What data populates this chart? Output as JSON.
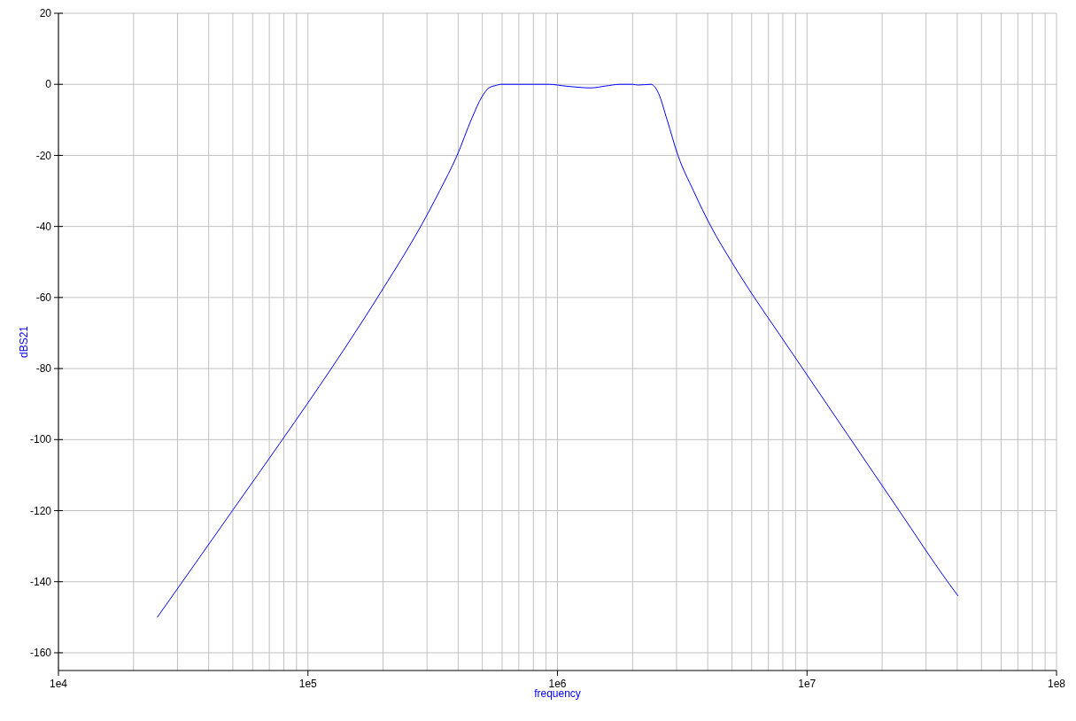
{
  "chart_data": {
    "type": "line",
    "xlabel": "frequency",
    "ylabel": "dBS21",
    "log": "x",
    "color": "#0000ff",
    "x": [
      24900,
      31400,
      49800,
      79000,
      124000,
      190000,
      202000,
      238000,
      283000,
      337000,
      396000,
      454000,
      498000,
      531000,
      568000,
      592000,
      927000,
      1080000,
      1360000,
      1550000,
      1780000,
      2000000,
      2100000,
      2370000,
      2440000,
      2540000,
      2750000,
      3040000,
      3510000,
      4120000,
      4990000,
      6150000,
      7690000,
      9610000,
      15000000,
      23400000,
      36600000,
      40300000
    ],
    "values": [
      -150,
      -140,
      -120,
      -100,
      -80,
      -60,
      -57,
      -49,
      -40,
      -30,
      -20,
      -9.5,
      -3.5,
      -1,
      -0.3,
      0,
      0,
      -0.5,
      -1,
      -0.5,
      0,
      0,
      -0.2,
      0,
      -0.5,
      -2.5,
      -10,
      -20,
      -30,
      -40,
      -50,
      -60,
      -70,
      -80,
      -100,
      -120,
      -140,
      -144
    ],
    "xlim": [
      10000,
      100000000
    ],
    "xticks": [
      {
        "value": 10000,
        "label": "1e4"
      },
      {
        "value": 20000,
        "label": null
      },
      {
        "value": 30000,
        "label": null
      },
      {
        "value": 40000,
        "label": null
      },
      {
        "value": 50000,
        "label": null
      },
      {
        "value": 60000,
        "label": null
      },
      {
        "value": 70000,
        "label": null
      },
      {
        "value": 80000,
        "label": null
      },
      {
        "value": 90000,
        "label": null
      },
      {
        "value": 100000,
        "label": "1e5"
      },
      {
        "value": 200000,
        "label": null
      },
      {
        "value": 300000,
        "label": null
      },
      {
        "value": 400000,
        "label": null
      },
      {
        "value": 500000,
        "label": null
      },
      {
        "value": 600000,
        "label": null
      },
      {
        "value": 700000,
        "label": null
      },
      {
        "value": 800000,
        "label": null
      },
      {
        "value": 900000,
        "label": null
      },
      {
        "value": 1000000,
        "label": "1e6"
      },
      {
        "value": 2000000,
        "label": null
      },
      {
        "value": 3000000,
        "label": null
      },
      {
        "value": 4000000,
        "label": null
      },
      {
        "value": 5000000,
        "label": null
      },
      {
        "value": 6000000,
        "label": null
      },
      {
        "value": 7000000,
        "label": null
      },
      {
        "value": 8000000,
        "label": null
      },
      {
        "value": 9000000,
        "label": null
      },
      {
        "value": 10000000,
        "label": "1e7"
      },
      {
        "value": 20000000,
        "label": null
      },
      {
        "value": 30000000,
        "label": null
      },
      {
        "value": 40000000,
        "label": null
      },
      {
        "value": 50000000,
        "label": null
      },
      {
        "value": 60000000,
        "label": null
      },
      {
        "value": 70000000,
        "label": null
      },
      {
        "value": 80000000,
        "label": null
      },
      {
        "value": 90000000,
        "label": null
      },
      {
        "value": 100000000,
        "label": "1e8"
      }
    ],
    "ylim": [
      -165,
      20
    ],
    "yticks": [
      -160,
      -140,
      -120,
      -100,
      -80,
      -60,
      -40,
      -20,
      0,
      20
    ],
    "grid": true
  }
}
